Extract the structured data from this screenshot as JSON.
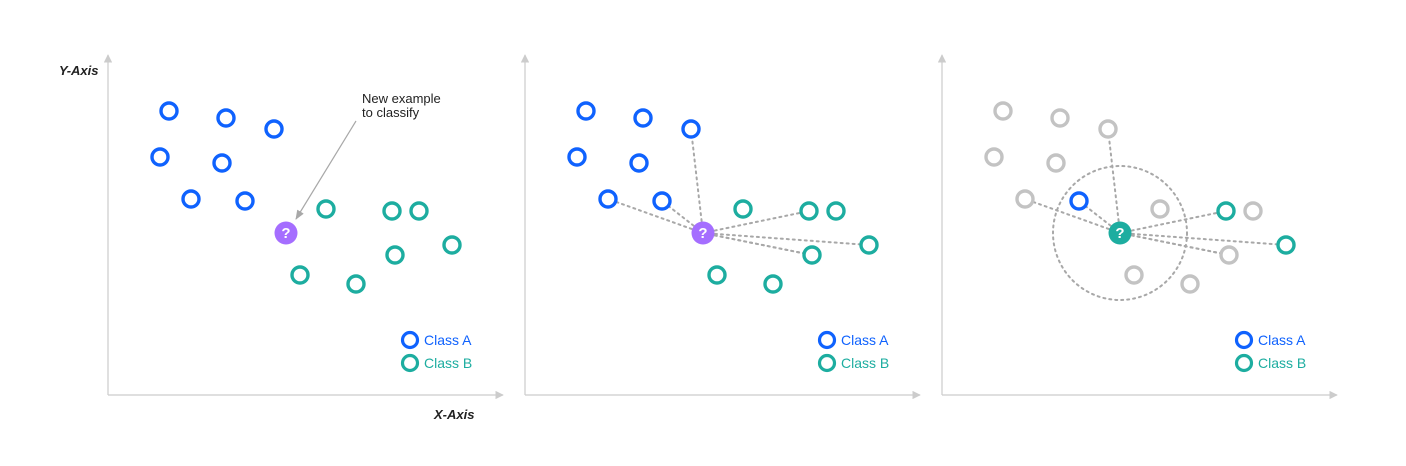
{
  "colors": {
    "class_a": "#0f62fe",
    "class_b": "#1dada0",
    "neutral": "#c3c3c3",
    "unknown": "#a56eff",
    "axis": "#cccccc",
    "guide": "#a8a8a8"
  },
  "axes": {
    "y_label": "Y-Axis",
    "x_label": "X-Axis"
  },
  "annotation": {
    "line1": "New example",
    "line2": "to classify"
  },
  "query_symbol": "?",
  "legend": {
    "class_a": "Class A",
    "class_b": "Class B"
  },
  "panels": [
    {
      "id": "original",
      "query_class": "unknown",
      "connections": [],
      "neighbor_circle": false,
      "dim_non_neighbors": false
    },
    {
      "id": "distances",
      "query_class": "unknown",
      "connections": [
        2,
        5,
        6,
        8,
        10,
        14,
        15
      ],
      "neighbor_circle": false,
      "dim_non_neighbors": false
    },
    {
      "id": "vote",
      "query_class": "B",
      "connections": [
        2,
        5,
        6,
        8,
        10,
        14,
        15
      ],
      "neighbor_circle": true,
      "dim_non_neighbors": true,
      "neighbors": [
        6,
        8,
        10
      ]
    }
  ],
  "chart_data": {
    "type": "scatter",
    "xlabel": "X-Axis",
    "ylabel": "Y-Axis",
    "series": [
      {
        "name": "Class A",
        "points": [
          [
            61,
            16
          ],
          [
            118,
            23
          ],
          [
            166,
            34
          ],
          [
            52,
            62
          ],
          [
            114,
            68
          ],
          [
            83,
            104
          ],
          [
            137,
            106
          ]
        ]
      },
      {
        "name": "Class B",
        "points": [
          [
            218,
            114
          ],
          [
            284,
            116
          ],
          [
            311,
            116
          ],
          [
            344,
            150
          ],
          [
            192,
            180
          ],
          [
            248,
            189
          ],
          [
            287,
            160
          ]
        ]
      }
    ],
    "query_point": [
      178,
      138
    ]
  }
}
